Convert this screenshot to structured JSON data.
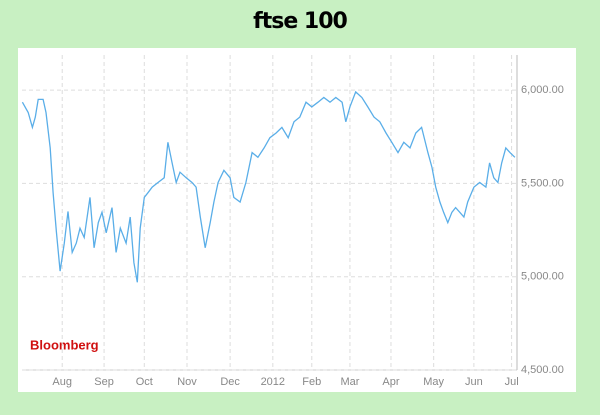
{
  "chart_data": {
    "type": "line",
    "title": "ftse 100",
    "source": "Bloomberg",
    "x": [
      -0.96,
      -0.82,
      -0.72,
      -0.65,
      -0.58,
      -0.46,
      -0.39,
      -0.29,
      -0.22,
      -0.14,
      -0.05,
      0.05,
      0.14,
      0.24,
      0.34,
      0.43,
      0.53,
      0.67,
      0.77,
      0.87,
      0.96,
      1.06,
      1.2,
      1.3,
      1.4,
      1.54,
      1.64,
      1.73,
      1.81,
      1.88,
      1.98,
      2.07,
      2.17,
      2.31,
      2.46,
      2.55,
      2.65,
      2.75,
      2.84,
      2.99,
      3.13,
      3.23,
      3.33,
      3.45,
      3.57,
      3.66,
      3.76,
      3.9,
      4.05,
      4.14,
      4.29,
      4.43,
      4.58,
      4.72,
      4.87,
      5.01,
      5.16,
      5.3,
      5.45,
      5.59,
      5.73,
      5.88,
      6.02,
      6.17,
      6.31,
      6.46,
      6.6,
      6.75,
      6.84,
      6.94,
      7.08,
      7.23,
      7.37,
      7.52,
      7.66,
      7.81,
      7.95,
      8.1,
      8.24,
      8.39,
      8.53,
      8.67,
      8.82,
      8.92,
      9.01,
      9.11,
      9.2,
      9.3,
      9.4,
      9.49,
      9.59,
      9.69,
      9.78,
      9.93,
      10.07,
      10.22,
      10.31,
      10.41,
      10.51,
      10.6,
      10.7,
      10.8,
      10.92
    ],
    "series": [
      {
        "color": "#5aaee8",
        "values": [
          5935,
          5880,
          5800,
          5855,
          5950,
          5950,
          5880,
          5690,
          5450,
          5240,
          5030,
          5180,
          5350,
          5130,
          5180,
          5260,
          5210,
          5425,
          5155,
          5290,
          5345,
          5235,
          5370,
          5130,
          5260,
          5180,
          5320,
          5075,
          4970,
          5260,
          5425,
          5450,
          5480,
          5505,
          5530,
          5720,
          5610,
          5505,
          5560,
          5530,
          5505,
          5480,
          5320,
          5155,
          5290,
          5400,
          5505,
          5570,
          5530,
          5425,
          5400,
          5505,
          5665,
          5640,
          5690,
          5745,
          5770,
          5800,
          5745,
          5830,
          5855,
          5935,
          5910,
          5935,
          5960,
          5935,
          5960,
          5935,
          5830,
          5910,
          5990,
          5960,
          5910,
          5855,
          5830,
          5770,
          5720,
          5665,
          5720,
          5690,
          5770,
          5800,
          5665,
          5585,
          5480,
          5400,
          5345,
          5290,
          5345,
          5370,
          5345,
          5320,
          5400,
          5480,
          5505,
          5480,
          5610,
          5530,
          5505,
          5610,
          5690,
          5665,
          5640
        ]
      }
    ],
    "xlim": [
      -0.97,
      10.97
    ],
    "xticks": [
      {
        "value": 0,
        "label": "Aug"
      },
      {
        "value": 1.01,
        "label": "Sep"
      },
      {
        "value": 1.98,
        "label": "Oct"
      },
      {
        "value": 3.01,
        "label": "Nov"
      },
      {
        "value": 4.05,
        "label": "Dec"
      },
      {
        "value": 5.08,
        "label": "2012"
      },
      {
        "value": 6.02,
        "label": "Feb"
      },
      {
        "value": 6.94,
        "label": "Mar"
      },
      {
        "value": 7.93,
        "label": "Apr"
      },
      {
        "value": 8.96,
        "label": "May"
      },
      {
        "value": 9.93,
        "label": "Jun"
      },
      {
        "value": 10.84,
        "label": "Jul"
      }
    ],
    "ylim": [
      4500,
      6188
    ],
    "yticks": [
      {
        "value": 4500,
        "label": "4,500.00"
      },
      {
        "value": 5000,
        "label": "5,000.00"
      },
      {
        "value": 5500,
        "label": "5,500.00"
      },
      {
        "value": 6000,
        "label": "6,000.00"
      }
    ],
    "grid": true
  }
}
